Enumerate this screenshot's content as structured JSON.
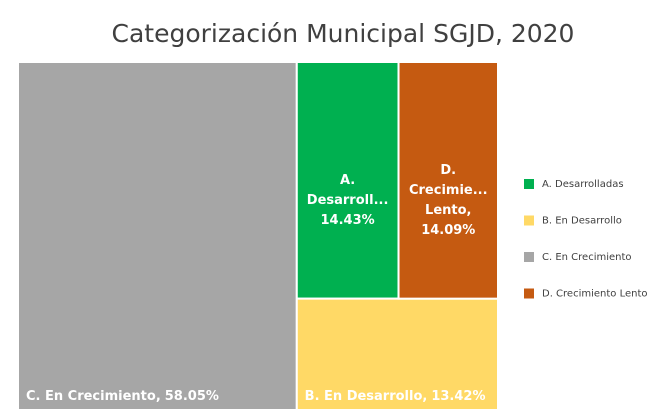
{
  "chart_data": {
    "type": "treemap",
    "title": "Categorización Municipal SGJD, 2020",
    "categories": [
      "A. Desarrolladas",
      "B. En Desarrollo",
      "C. En Crecimiento",
      "D. Crecimiento Lento"
    ],
    "values": [
      14.43,
      13.42,
      58.05,
      14.09
    ],
    "value_labels": [
      "14.43%",
      "13.42%",
      "58.05%",
      "14.09%"
    ],
    "tile_labels": [
      [
        "A.",
        "Desarroll..."
      ],
      [
        "B. En Desarrollo,"
      ],
      [
        "C. En Crecimiento,"
      ],
      [
        "D.",
        "Crecimie...",
        "Lento,"
      ]
    ],
    "colors": [
      "#00b050",
      "#ffd966",
      "#a6a6a6",
      "#c55a11"
    ],
    "legend": "right"
  }
}
